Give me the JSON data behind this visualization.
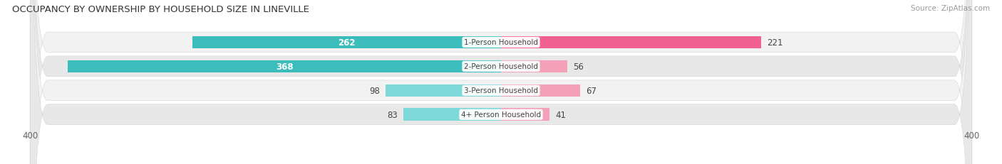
{
  "title": "OCCUPANCY BY OWNERSHIP BY HOUSEHOLD SIZE IN LINEVILLE",
  "source": "Source: ZipAtlas.com",
  "categories": [
    "1-Person Household",
    "2-Person Household",
    "3-Person Household",
    "4+ Person Household"
  ],
  "owner_values": [
    262,
    368,
    98,
    83
  ],
  "renter_values": [
    221,
    56,
    67,
    41
  ],
  "owner_color": "#3DBCBC",
  "owner_color_light": "#7DD8D8",
  "renter_color": "#F06090",
  "renter_color_light": "#F4A0B8",
  "axis_max": 400,
  "background_color": "#FFFFFF",
  "row_color_dark": "#E8E8E8",
  "row_color_light": "#F2F2F2",
  "label_inside_threshold": 150
}
